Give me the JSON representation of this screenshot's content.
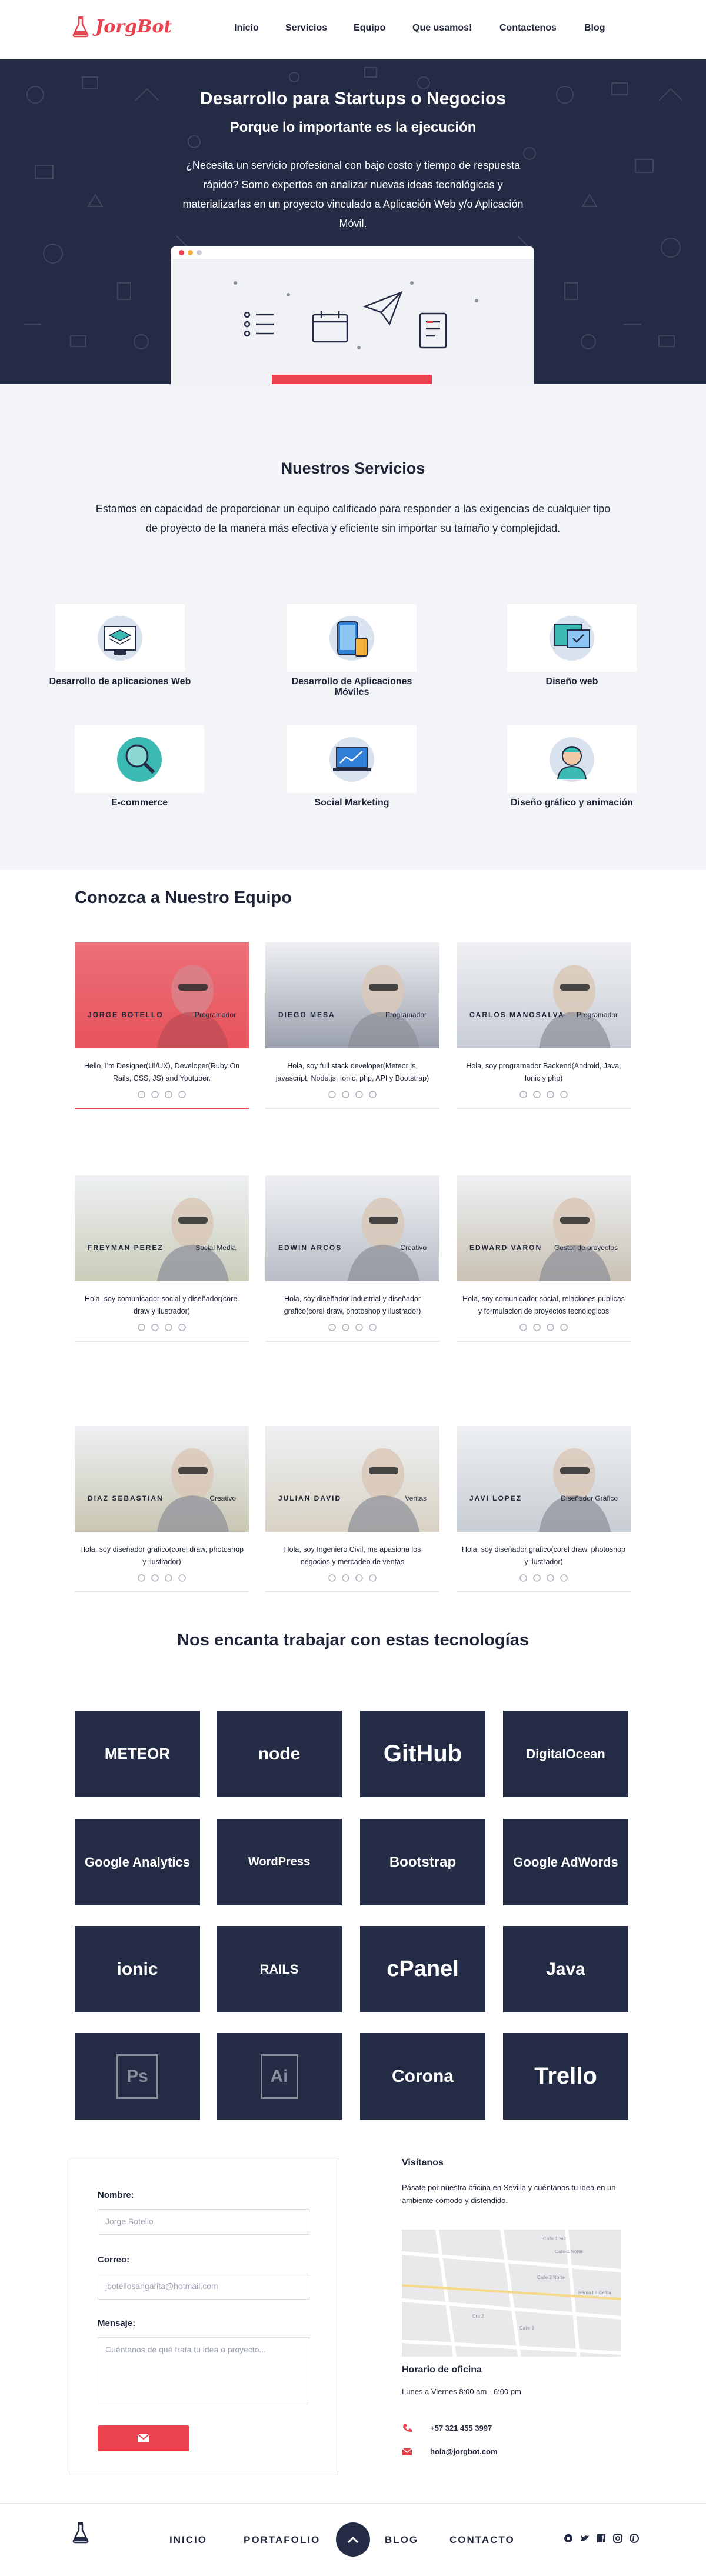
{
  "nav": {
    "brand": "JorgBot",
    "links": [
      "Inicio",
      "Servicios",
      "Equipo",
      "Que usamos!",
      "Contactenos",
      "Blog"
    ]
  },
  "hero": {
    "title": "Desarrollo para Startups o Negocios",
    "subtitle": "Porque lo importante es la ejecución",
    "description": "¿Necesita un servicio profesional con bajo costo y tiempo de respuesta rápido? Somo expertos en analizar nuevas ideas tecnológicas y materializarlas en un proyecto vinculado a Aplicación Web y/o Aplicación Móvil."
  },
  "services": {
    "title": "Nuestros Servicios",
    "description": "Estamos en capacidad de proporcionar un equipo calificado para responder a las exigencias de cualquier tipo de proyecto de la manera más efectiva y eficiente sin importar su tamaño y complejidad.",
    "items": [
      {
        "label": "Desarrollo de aplicaciones Web",
        "icon": "web-layers-icon"
      },
      {
        "label": "Desarrollo de Aplicaciones Móviles",
        "icon": "mobile-devices-icon"
      },
      {
        "label": "Diseño web",
        "icon": "web-design-icon"
      },
      {
        "label": "E-commerce",
        "icon": "magnifier-icon"
      },
      {
        "label": "Social Marketing",
        "icon": "laptop-chart-icon"
      },
      {
        "label": "Diseño gráfico y animación",
        "icon": "designer-avatar-icon"
      }
    ]
  },
  "team": {
    "title": "Conozca a Nuestro Equipo",
    "members": [
      {
        "name": "JORGE BOTELLO",
        "role": "Programador",
        "bio": "Hello, I'm Designer(UI/UX), Developer(Ruby On Rails, CSS, JS) and Youtuber."
      },
      {
        "name": "DIEGO MESA",
        "role": "Programador",
        "bio": "Hola, soy full stack developer(Meteor js, javascript, Node.js, Ionic, php, API y Bootstrap)"
      },
      {
        "name": "CARLOS MANOSALVA",
        "role": "Programador",
        "bio": "Hola, soy programador Backend(Android, Java, Ionic y php)"
      },
      {
        "name": "FREYMAN PEREZ",
        "role": "Social Media",
        "bio": "Hola, soy comunicador social y diseñador(corel draw y ilustrador)"
      },
      {
        "name": "EDWIN ARCOS",
        "role": "Creativo",
        "bio": "Hola, soy diseñador industrial y diseñador grafico(corel draw, photoshop y ilustrador)"
      },
      {
        "name": "EDWARD VARON",
        "role": "Gestor de proyectos",
        "bio": "Hola, soy comunicador social, relaciones publicas y formulacion de proyectos tecnologicos"
      },
      {
        "name": "DIAZ SEBASTIAN",
        "role": "Creativo",
        "bio": "Hola, soy diseñador grafico(corel draw, photoshop y ilustrador)"
      },
      {
        "name": "JULIAN DAVID",
        "role": "Ventas",
        "bio": "Hola, soy Ingeniero Civil, me apasiona los negocios y mercadeo de ventas"
      },
      {
        "name": "JAVI LOPEZ",
        "role": "Diseñador Gráfico",
        "bio": "Hola, soy diseñador grafico(corel draw, photoshop y ilustrador)"
      }
    ]
  },
  "technologies": {
    "title": "Nos encanta trabajar con estas tecnologías",
    "items": [
      "METEOR",
      "node",
      "GitHub",
      "DigitalOcean",
      "Google Analytics",
      "WordPress",
      "Bootstrap",
      "Google AdWords",
      "ionic",
      "RAILS",
      "cPanel",
      "Java",
      "Ps",
      "Ai",
      "Corona",
      "Trello"
    ]
  },
  "contact": {
    "name_label": "Nombre:",
    "name_placeholder": "Jorge Botello",
    "email_label": "Correo:",
    "email_placeholder": "jbotellosangarita@hotmail.com",
    "message_label": "Mensaje:",
    "message_placeholder": "Cuéntanos de qué trata tu idea o proyecto...",
    "visit_title": "Visítanos",
    "visit_text": "Pásate por nuestra oficina en Sevilla y cuéntanos tu idea en un ambiente cómodo y distendido.",
    "map_labels": [
      "Calle 1 Sur",
      "Calle 1 Norte",
      "Calle 2 Norte",
      "Barrio La Ceiba",
      "Cra 2",
      "Calle 3"
    ],
    "hours_title": "Horario de oficina",
    "hours_text": "Lunes a Viernes 8:00 am - 6:00 pm",
    "phone": "+57 321 455 3997",
    "email": "hola@jorgbot.com"
  },
  "footer": {
    "links": [
      "INICIO",
      "PORTAFOLIO",
      "BLOG",
      "CONTACTO"
    ]
  },
  "colors": {
    "navy": "#232b45",
    "accent": "#e8434e",
    "light": "#f3f4f8"
  }
}
